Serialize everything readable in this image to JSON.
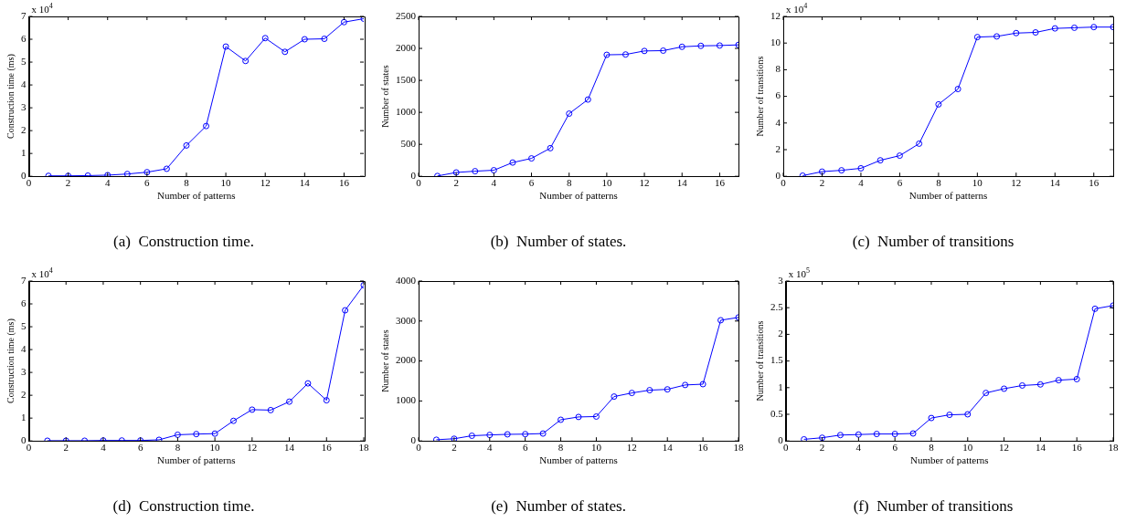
{
  "chart_data": [
    {
      "type": "line",
      "title": "(a)  Construction time.",
      "xlabel": "Number of patterns",
      "ylabel": "Construction time (ms)",
      "annotations": [
        "x 10$^{4}$"
      ],
      "marker": "circle",
      "grid": false,
      "legend": false,
      "x": [
        1,
        2,
        3,
        4,
        5,
        6,
        7,
        8,
        9,
        10,
        11,
        12,
        13,
        14,
        15,
        16,
        17
      ],
      "series": [
        {
          "color": "#0000ff",
          "values": [
            0.02,
            0.02,
            0.03,
            0.05,
            0.1,
            0.18,
            0.33,
            1.35,
            2.2,
            5.68,
            5.05,
            6.05,
            5.45,
            6.0,
            6.02,
            6.75,
            6.9
          ]
        }
      ],
      "xlim": [
        0,
        17
      ],
      "xticks": [
        0,
        2,
        4,
        6,
        8,
        10,
        12,
        14,
        16
      ],
      "ylim": [
        0,
        7
      ],
      "yticks": [
        0,
        1,
        2,
        3,
        4,
        5,
        6,
        7
      ]
    },
    {
      "type": "line",
      "title": "(b)  Number of states.",
      "xlabel": "Number of patterns",
      "ylabel": "Number of states",
      "marker": "circle",
      "grid": false,
      "legend": false,
      "x": [
        1,
        2,
        3,
        4,
        5,
        6,
        7,
        8,
        9,
        10,
        11,
        12,
        13,
        14,
        15,
        16,
        17
      ],
      "series": [
        {
          "color": "#0000ff",
          "values": [
            5,
            60,
            80,
            95,
            215,
            280,
            440,
            980,
            1200,
            1900,
            1905,
            1960,
            1965,
            2025,
            2040,
            2045,
            2055
          ]
        }
      ],
      "xlim": [
        0,
        17
      ],
      "xticks": [
        0,
        2,
        4,
        6,
        8,
        10,
        12,
        14,
        16
      ],
      "ylim": [
        0,
        2500
      ],
      "yticks": [
        0,
        500,
        1000,
        1500,
        2000,
        2500
      ]
    },
    {
      "type": "line",
      "title": "(c)  Number of transitions",
      "xlabel": "Number of patterns",
      "ylabel": "Number of transitions",
      "annotations": [
        "x 10$^{4}$"
      ],
      "marker": "circle",
      "grid": false,
      "legend": false,
      "x": [
        1,
        2,
        3,
        4,
        5,
        6,
        7,
        8,
        9,
        10,
        11,
        12,
        13,
        14,
        15,
        16,
        17
      ],
      "series": [
        {
          "color": "#0000ff",
          "values": [
            0.05,
            0.35,
            0.45,
            0.6,
            1.2,
            1.55,
            2.45,
            5.4,
            6.55,
            10.45,
            10.5,
            10.75,
            10.8,
            11.1,
            11.15,
            11.2,
            11.2
          ]
        }
      ],
      "xlim": [
        0,
        17
      ],
      "xticks": [
        0,
        2,
        4,
        6,
        8,
        10,
        12,
        14,
        16
      ],
      "ylim": [
        0,
        12
      ],
      "yticks": [
        0,
        2,
        4,
        6,
        8,
        10,
        12
      ]
    },
    {
      "type": "line",
      "title": "(d)  Construction time.",
      "xlabel": "Number of patterns",
      "ylabel": "Construction time (ms)",
      "annotations": [
        "x 10$^{4}$"
      ],
      "marker": "circle",
      "grid": false,
      "legend": false,
      "x": [
        1,
        2,
        3,
        4,
        5,
        6,
        7,
        8,
        9,
        10,
        11,
        12,
        13,
        14,
        15,
        16,
        17,
        18
      ],
      "series": [
        {
          "color": "#0000ff",
          "values": [
            0.01,
            0.01,
            0.01,
            0.02,
            0.02,
            0.02,
            0.05,
            0.27,
            0.3,
            0.32,
            0.88,
            1.37,
            1.35,
            1.72,
            2.52,
            1.78,
            5.72,
            6.82
          ]
        }
      ],
      "xlim": [
        0,
        18
      ],
      "xticks": [
        0,
        2,
        4,
        6,
        8,
        10,
        12,
        14,
        16,
        18
      ],
      "ylim": [
        0,
        7
      ],
      "yticks": [
        0,
        1,
        2,
        3,
        4,
        5,
        6,
        7
      ]
    },
    {
      "type": "line",
      "title": "(e)  Number of states.",
      "xlabel": "Number of patterns",
      "ylabel": "Number of states",
      "marker": "circle",
      "grid": false,
      "legend": false,
      "x": [
        1,
        2,
        3,
        4,
        5,
        6,
        7,
        8,
        9,
        10,
        11,
        12,
        13,
        14,
        15,
        16,
        17,
        18
      ],
      "series": [
        {
          "color": "#0000ff",
          "values": [
            30,
            55,
            130,
            150,
            165,
            170,
            185,
            530,
            600,
            610,
            1110,
            1200,
            1270,
            1290,
            1400,
            1420,
            3020,
            3090
          ]
        }
      ],
      "xlim": [
        0,
        18
      ],
      "xticks": [
        0,
        2,
        4,
        6,
        8,
        10,
        12,
        14,
        16,
        18
      ],
      "ylim": [
        0,
        4000
      ],
      "yticks": [
        0,
        1000,
        2000,
        3000,
        4000
      ]
    },
    {
      "type": "line",
      "title": "(f)  Number of transitions",
      "xlabel": "Number of patterns",
      "ylabel": "Number of transitions",
      "annotations": [
        "x 10$^{5}$"
      ],
      "marker": "circle",
      "grid": false,
      "legend": false,
      "x": [
        1,
        2,
        3,
        4,
        5,
        6,
        7,
        8,
        9,
        10,
        11,
        12,
        13,
        14,
        15,
        16,
        17,
        18
      ],
      "series": [
        {
          "color": "#0000ff",
          "values": [
            0.03,
            0.06,
            0.11,
            0.12,
            0.13,
            0.13,
            0.14,
            0.43,
            0.49,
            0.5,
            0.9,
            0.98,
            1.04,
            1.06,
            1.14,
            1.16,
            2.48,
            2.54
          ]
        }
      ],
      "xlim": [
        0,
        18
      ],
      "xticks": [
        0,
        2,
        4,
        6,
        8,
        10,
        12,
        14,
        16,
        18
      ],
      "ylim": [
        0,
        3
      ],
      "yticks": [
        0,
        0.5,
        1,
        1.5,
        2,
        2.5,
        3
      ]
    }
  ]
}
